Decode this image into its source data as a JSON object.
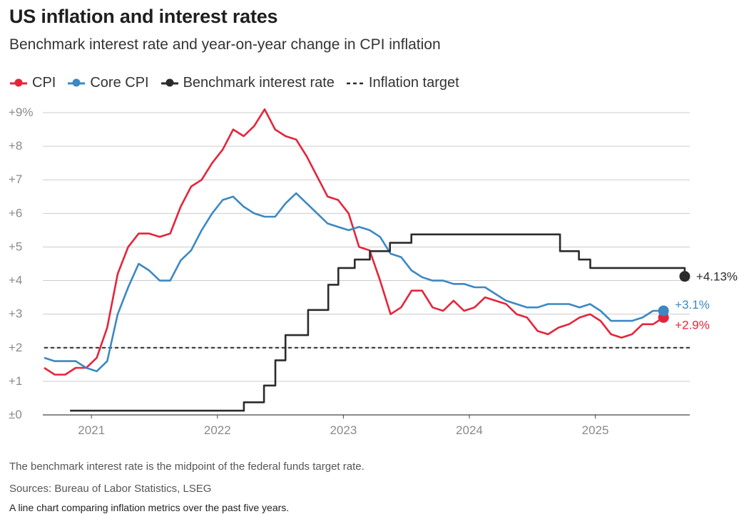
{
  "title": "US inflation and interest rates",
  "subtitle": "Benchmark interest rate and year-on-year change in CPI inflation",
  "legend": {
    "cpi": "CPI",
    "core_cpi": "Core CPI",
    "rate": "Benchmark interest rate",
    "target": "Inflation target"
  },
  "colors": {
    "cpi": "#e5243b",
    "core_cpi": "#3b88c3",
    "rate": "#2b2b2b",
    "target": "#2b2b2b",
    "grid": "#cccccc",
    "axis_text": "#8a8a8a"
  },
  "notes": {
    "definition": "The benchmark interest rate is the midpoint of the federal funds target rate.",
    "sources": "Sources: Bureau of Labor Statistics, LSEG",
    "caption": "A line chart comparing inflation metrics over the past five years."
  },
  "chart_data": {
    "type": "line",
    "title": "US inflation and interest rates",
    "xlabel": "",
    "ylabel": "",
    "xlim": [
      2020.625,
      2025.75
    ],
    "ylim": [
      0,
      9
    ],
    "yticks": [
      {
        "value": 0,
        "label": "±0"
      },
      {
        "value": 1,
        "label": "+1"
      },
      {
        "value": 2,
        "label": "+2"
      },
      {
        "value": 3,
        "label": "+3"
      },
      {
        "value": 4,
        "label": "+4"
      },
      {
        "value": 5,
        "label": "+5"
      },
      {
        "value": 6,
        "label": "+6"
      },
      {
        "value": 7,
        "label": "+7"
      },
      {
        "value": 8,
        "label": "+8"
      },
      {
        "value": 9,
        "label": "+9%"
      }
    ],
    "xticks": [
      {
        "value": 2021,
        "label": "2021"
      },
      {
        "value": 2022,
        "label": "2022"
      },
      {
        "value": 2023,
        "label": "2023"
      },
      {
        "value": 2024,
        "label": "2024"
      },
      {
        "value": 2025,
        "label": "2025"
      }
    ],
    "grid": true,
    "series": [
      {
        "name": "CPI",
        "key": "cpi",
        "x_start": 2020.625,
        "x_step": 0.08333,
        "values": [
          1.4,
          1.2,
          1.2,
          1.4,
          1.4,
          1.7,
          2.6,
          4.2,
          5.0,
          5.4,
          5.4,
          5.3,
          5.4,
          6.2,
          6.8,
          7.0,
          7.5,
          7.9,
          8.5,
          8.3,
          8.6,
          9.1,
          8.5,
          8.3,
          8.2,
          7.7,
          7.1,
          6.5,
          6.4,
          6.0,
          5.0,
          4.9,
          4.0,
          3.0,
          3.2,
          3.7,
          3.7,
          3.2,
          3.1,
          3.4,
          3.1,
          3.2,
          3.5,
          3.4,
          3.3,
          3.0,
          2.9,
          2.5,
          2.4,
          2.6,
          2.7,
          2.9,
          3.0,
          2.8,
          2.4,
          2.3,
          2.4,
          2.7,
          2.7,
          2.9
        ],
        "end_label": "+2.9%"
      },
      {
        "name": "Core CPI",
        "key": "core_cpi",
        "x_start": 2020.625,
        "x_step": 0.08333,
        "values": [
          1.7,
          1.6,
          1.6,
          1.6,
          1.4,
          1.3,
          1.6,
          3.0,
          3.8,
          4.5,
          4.3,
          4.0,
          4.0,
          4.6,
          4.9,
          5.5,
          6.0,
          6.4,
          6.5,
          6.2,
          6.0,
          5.9,
          5.9,
          6.3,
          6.6,
          6.3,
          6.0,
          5.7,
          5.6,
          5.5,
          5.6,
          5.5,
          5.3,
          4.8,
          4.7,
          4.3,
          4.1,
          4.0,
          4.0,
          3.9,
          3.9,
          3.8,
          3.8,
          3.6,
          3.4,
          3.3,
          3.2,
          3.2,
          3.3,
          3.3,
          3.3,
          3.2,
          3.3,
          3.1,
          2.8,
          2.8,
          2.8,
          2.9,
          3.1,
          3.1
        ],
        "end_label": "+3.1%"
      },
      {
        "name": "Benchmark interest rate",
        "key": "rate",
        "step": true,
        "points": [
          [
            2020.83,
            0.125
          ],
          [
            2022.21,
            0.375
          ],
          [
            2022.37,
            0.875
          ],
          [
            2022.46,
            1.625
          ],
          [
            2022.54,
            2.375
          ],
          [
            2022.72,
            3.125
          ],
          [
            2022.88,
            3.875
          ],
          [
            2022.96,
            4.375
          ],
          [
            2023.09,
            4.625
          ],
          [
            2023.21,
            4.875
          ],
          [
            2023.37,
            5.125
          ],
          [
            2023.54,
            5.375
          ],
          [
            2024.72,
            4.875
          ],
          [
            2024.87,
            4.625
          ],
          [
            2024.96,
            4.375
          ],
          [
            2025.71,
            4.125
          ]
        ],
        "end_label": "+4.13%"
      }
    ],
    "target_line": {
      "name": "Inflation target",
      "value": 2.0
    }
  }
}
